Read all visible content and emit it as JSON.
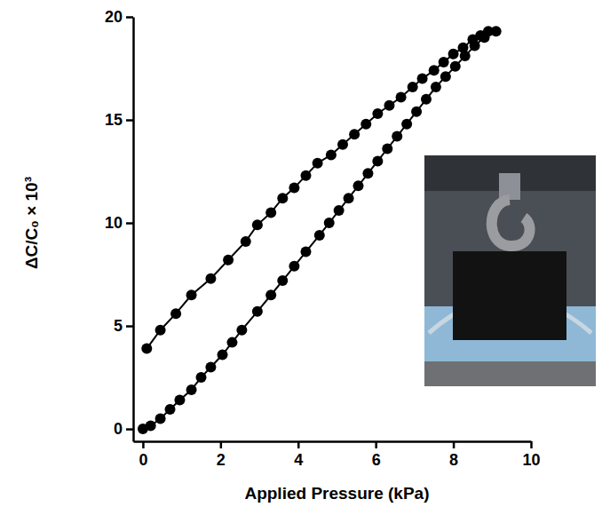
{
  "chart_data": {
    "type": "line",
    "x_label": "Applied Pressure (kPa)",
    "y_label": "ΔC/C₀ × 10³",
    "x": [
      0,
      0.2,
      0.45,
      0.7,
      0.95,
      1.25,
      1.5,
      1.75,
      2.05,
      2.3,
      2.55,
      2.95,
      3.3,
      3.6,
      3.9,
      4.2,
      4.55,
      4.8,
      5.05,
      5.3,
      5.55,
      5.8,
      6.05,
      6.3,
      6.55,
      6.8,
      7.05,
      7.3,
      7.55,
      7.8,
      8.05,
      8.3,
      8.55,
      8.8,
      9.1,
      8.9,
      8.7,
      8.5,
      8.25,
      8.0,
      7.75,
      7.5,
      7.2,
      6.95,
      6.65,
      6.35,
      6.05,
      5.75,
      5.45,
      5.15,
      4.85,
      4.5,
      4.2,
      3.9,
      3.6,
      3.3,
      2.95,
      2.65,
      2.2,
      1.75,
      1.25,
      0.85,
      0.45,
      0.1
    ],
    "values": [
      0,
      0.15,
      0.5,
      0.95,
      1.4,
      1.9,
      2.5,
      3.0,
      3.6,
      4.2,
      4.8,
      5.7,
      6.5,
      7.2,
      7.9,
      8.6,
      9.4,
      10.0,
      10.6,
      11.2,
      11.8,
      12.4,
      13.0,
      13.6,
      14.2,
      14.8,
      15.4,
      16.0,
      16.6,
      17.1,
      17.6,
      18.1,
      18.6,
      19.0,
      19.3,
      19.3,
      19.1,
      18.9,
      18.5,
      18.2,
      17.8,
      17.4,
      17.0,
      16.6,
      16.1,
      15.7,
      15.3,
      14.8,
      14.3,
      13.8,
      13.3,
      12.9,
      12.3,
      11.7,
      11.2,
      10.5,
      9.9,
      9.1,
      8.2,
      7.3,
      6.5,
      5.6,
      4.8,
      3.9
    ],
    "color": "#000000",
    "marker": "circle",
    "line_style": "solid",
    "xlim": [
      -0.25,
      10
    ],
    "xticks": [
      0,
      2,
      4,
      6,
      8,
      10
    ],
    "ylim": [
      -0.6,
      20
    ],
    "yticks": [
      0,
      5,
      10,
      15,
      20
    ],
    "grid": false
  }
}
